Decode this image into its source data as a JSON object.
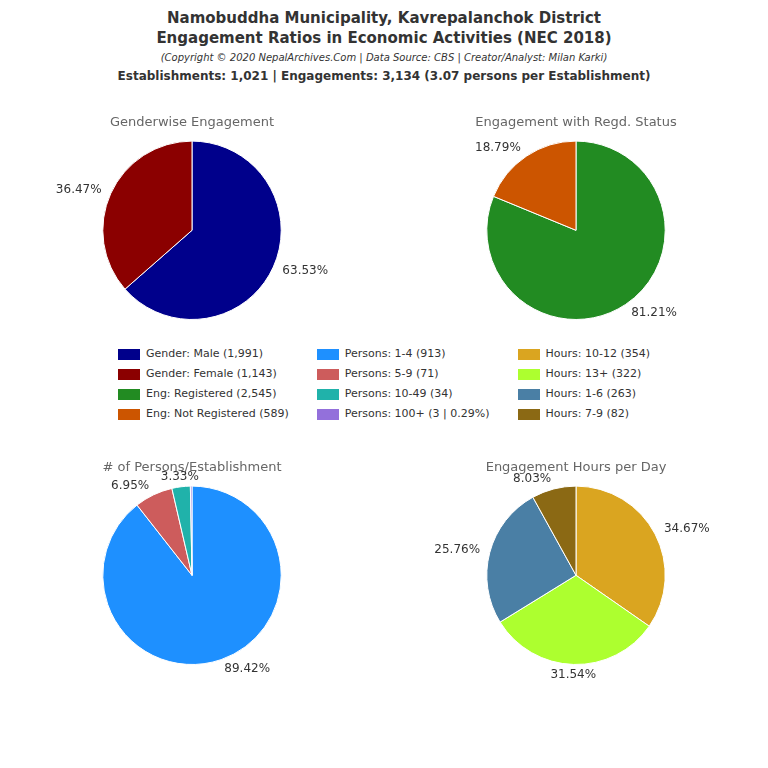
{
  "title": [
    "Namobuddha Municipality, Kavrepalanchok District",
    "Engagement Ratios in Economic Activities (NEC 2018)"
  ],
  "subtitle": "(Copyright © 2020 NepalArchives.Com | Data Source: CBS | Creator/Analyst: Milan Karki)",
  "annotations": [
    "Establishments: 1,021 | Engagements: 3,134 (3.07 persons per Establishment)"
  ],
  "chart_data": [
    {
      "type": "pie",
      "title": "Genderwise Engagement",
      "categories": [
        "Gender: Male (1,991)",
        "Gender: Female (1,143)"
      ],
      "values": [
        63.53,
        36.47
      ],
      "value_labels": [
        "63.53%",
        "36.47%"
      ],
      "colors": [
        "#00008B",
        "#8B0000"
      ],
      "data_labels": true
    },
    {
      "type": "pie",
      "title": "Engagement with Regd. Status",
      "categories": [
        "Eng: Registered (2,545)",
        "Eng: Not Registered (589)"
      ],
      "values": [
        81.21,
        18.79
      ],
      "value_labels": [
        "81.21%",
        "18.79%"
      ],
      "colors": [
        "#228B22",
        "#CC5500"
      ],
      "data_labels": true
    },
    {
      "type": "pie",
      "title": "# of Persons/Establishment",
      "categories": [
        "Persons: 1-4 (913)",
        "Persons: 5-9 (71)",
        "Persons: 10-49 (34)",
        "Persons: 100+ (3 | 0.29%)"
      ],
      "values": [
        89.42,
        6.95,
        3.33,
        0.29
      ],
      "value_labels": [
        "89.42%",
        "6.95%",
        "3.33%",
        null
      ],
      "colors": [
        "#1E90FF",
        "#CD5C5C",
        "#20B2AA",
        "#9370DB"
      ],
      "data_labels": true
    },
    {
      "type": "pie",
      "title": "Engagement Hours per Day",
      "categories": [
        "Hours: 10-12 (354)",
        "Hours: 13+ (322)",
        "Hours: 1-6 (263)",
        "Hours: 7-9 (82)"
      ],
      "values": [
        34.67,
        31.54,
        25.76,
        8.03
      ],
      "value_labels": [
        "34.67%",
        "31.54%",
        "25.76%",
        "8.03%"
      ],
      "colors": [
        "#DAA520",
        "#ADFF2F",
        "#4A7FA5",
        "#8B6914"
      ],
      "data_labels": true
    }
  ]
}
